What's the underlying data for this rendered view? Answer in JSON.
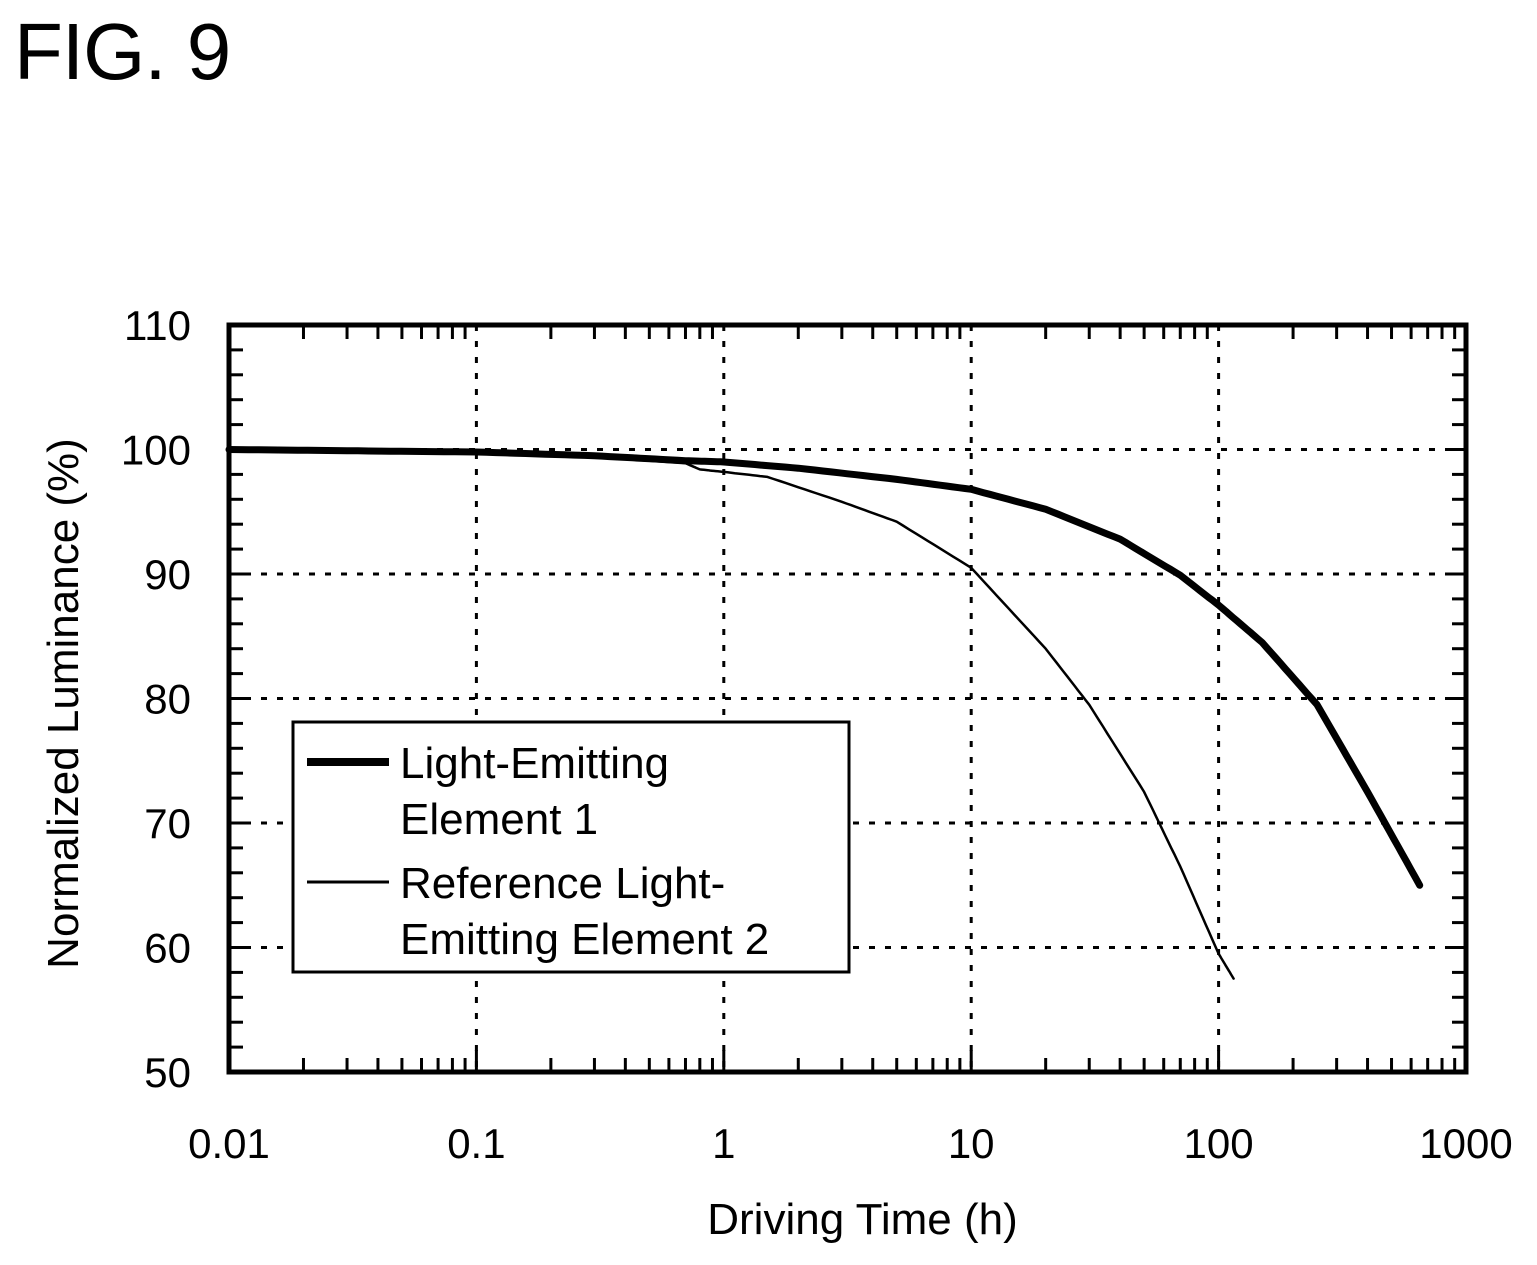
{
  "figure_label": "FIG. 9",
  "chart_data": {
    "type": "line",
    "title": "",
    "xlabel": "Driving Time (h)",
    "ylabel": "Normalized Luminance (%)",
    "x_scale": "log",
    "xlim": [
      0.01,
      1000
    ],
    "ylim": [
      50,
      110
    ],
    "x_ticks": [
      0.01,
      0.1,
      1,
      10,
      100,
      1000
    ],
    "x_tick_labels": [
      "0.01",
      "0.1",
      "1",
      "10",
      "100",
      "1000"
    ],
    "y_ticks": [
      50,
      60,
      70,
      80,
      90,
      100,
      110
    ],
    "y_tick_labels": [
      "50",
      "60",
      "70",
      "80",
      "90",
      "100",
      "110"
    ],
    "grid": true,
    "grid_style": "dotted",
    "legend_position": "lower-left",
    "series": [
      {
        "name": "Light-Emitting Element 1",
        "name_lines": [
          "Light-Emitting",
          "Element 1"
        ],
        "style": "thick",
        "x": [
          0.01,
          0.03,
          0.1,
          0.3,
          0.7,
          1.0,
          2,
          5,
          10,
          20,
          40,
          70,
          100,
          150,
          250,
          400,
          650
        ],
        "y": [
          100,
          99.9,
          99.8,
          99.5,
          99.1,
          99.0,
          98.5,
          97.6,
          96.8,
          95.2,
          92.8,
          89.9,
          87.5,
          84.5,
          79.5,
          72.5,
          65.0
        ]
      },
      {
        "name": "Reference Light-Emitting Element 2",
        "name_lines": [
          "Reference Light-",
          "Emitting Element 2"
        ],
        "style": "thin",
        "x": [
          0.01,
          0.03,
          0.1,
          0.3,
          0.7,
          0.8,
          1.0,
          1.5,
          3,
          5,
          10,
          20,
          30,
          50,
          70,
          100,
          115
        ],
        "y": [
          100,
          99.9,
          99.7,
          99.4,
          98.9,
          98.4,
          98.2,
          97.8,
          95.8,
          94.2,
          90.5,
          84.0,
          79.5,
          72.5,
          66.5,
          59.5,
          57.5
        ]
      }
    ]
  }
}
